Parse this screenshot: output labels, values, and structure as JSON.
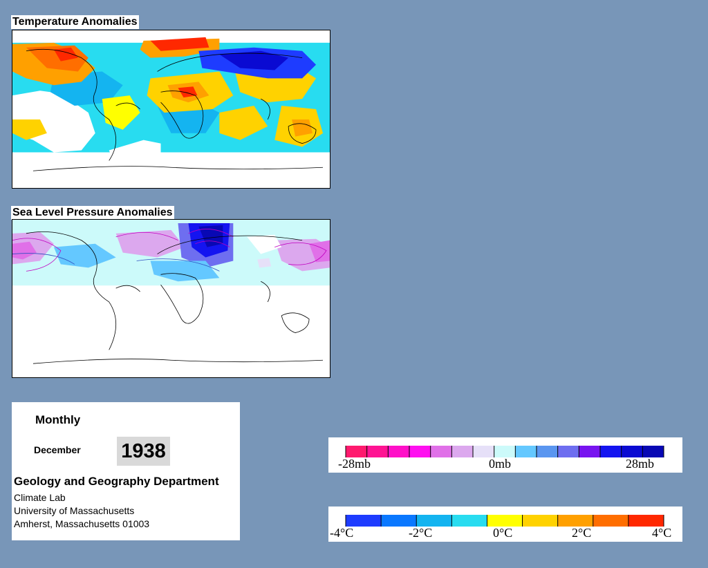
{
  "maps": {
    "temperature": {
      "title": "Temperature Anomalies"
    },
    "pressure": {
      "title": "Sea Level Pressure Anomalies"
    }
  },
  "info": {
    "period": "Monthly",
    "month": "December",
    "year": "1938",
    "department": "Geology and Geography Department",
    "lines": [
      "Climate Lab",
      "University of Massachusetts",
      "Amherst, Massachusetts 01003"
    ]
  },
  "legend_pressure": {
    "unit": "mb",
    "range": [
      -28,
      28
    ],
    "labels": [
      "-28mb",
      "0mb",
      "28mb"
    ],
    "colors": [
      "#ff1a6e",
      "#ff1493",
      "#ff10c8",
      "#ff10f0",
      "#e070e8",
      "#dca8ee",
      "#e6e0f8",
      "#ccfafa",
      "#64c8ff",
      "#5a96f0",
      "#6e6ef0",
      "#7814f0",
      "#1414f0",
      "#0a0ad2",
      "#0808b4"
    ]
  },
  "legend_temperature": {
    "unit": "°C",
    "range": [
      -4,
      4
    ],
    "labels": [
      "-4°C",
      "-2°C",
      "0°C",
      "2°C",
      "4°C"
    ],
    "colors": [
      "#1e3cff",
      "#0a78ff",
      "#14b4f0",
      "#28dcf0",
      "#ffff00",
      "#ffd200",
      "#ffa000",
      "#ff6e00",
      "#ff2800"
    ]
  }
}
